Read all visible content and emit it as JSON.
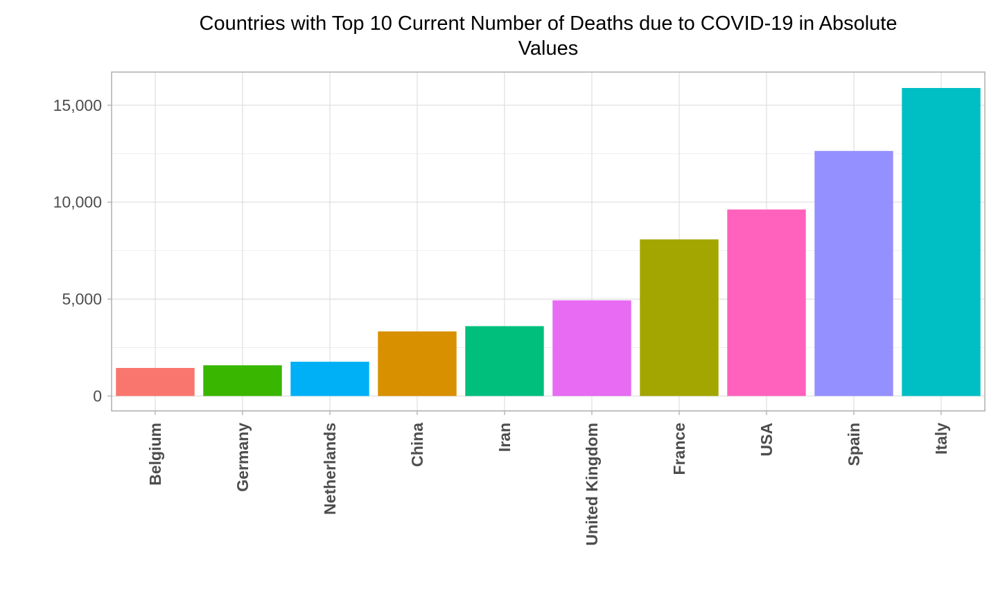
{
  "chart_data": {
    "type": "bar",
    "title": "Countries with Top 10 Current Number of Deaths due to COVID-19 in Absolute Values",
    "title_lines": [
      "Countries with Top 10 Current Number of Deaths due to COVID-19 in Absolute",
      "Values"
    ],
    "xlabel": "",
    "ylabel": "",
    "categories": [
      "Belgium",
      "Germany",
      "Netherlands",
      "China",
      "Iran",
      "United Kingdom",
      "France",
      "USA",
      "Spain",
      "Italy"
    ],
    "values": [
      1447,
      1584,
      1768,
      3331,
      3603,
      4934,
      8078,
      9620,
      12641,
      15887
    ],
    "colors": [
      "#F8766D",
      "#39B600",
      "#00B0F6",
      "#D89000",
      "#00BF7D",
      "#E76BF3",
      "#A3A500",
      "#FF62BC",
      "#9590FF",
      "#00BFC4"
    ],
    "ylim": [
      -800,
      16700
    ],
    "yticks": [
      0,
      5000,
      10000,
      15000
    ],
    "ytick_labels": [
      "0",
      "5,000",
      "10,000",
      "15,000"
    ],
    "grid": true,
    "legend": "none"
  }
}
